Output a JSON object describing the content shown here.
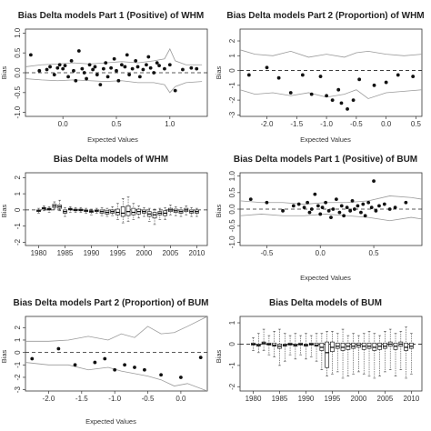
{
  "figure": {
    "panels": [
      {
        "id": "p1",
        "title": "Bias Delta models Part 1 (Positive) of WHM",
        "xlabel": "Expected Values",
        "ylabel": "Bias"
      },
      {
        "id": "p2",
        "title": "Bias Delta models Part 2 (Proportion) of WHM",
        "xlabel": "Expected Values",
        "ylabel": "Bias"
      },
      {
        "id": "p3",
        "title": "Bias Delta models of WHM",
        "xlabel": "",
        "ylabel": "Bias"
      },
      {
        "id": "p4",
        "title": "Bias Delta models Part 1 (Positive) of BUM",
        "xlabel": "Expected Values",
        "ylabel": "Bias"
      },
      {
        "id": "p5",
        "title": "Bias Delta models Part 2 (Proportion) of BUM",
        "xlabel": "Expected Values",
        "ylabel": "Bias"
      },
      {
        "id": "p6",
        "title": "Bias Delta models of BUM",
        "xlabel": "",
        "ylabel": "Bias"
      }
    ]
  },
  "chart_data": [
    {
      "type": "scatter",
      "title": "Bias Delta models Part 1 (Positive) of WHM",
      "xlabel": "Expected Values",
      "ylabel": "Bias",
      "xlim": [
        -0.35,
        1.35
      ],
      "ylim": [
        -1.1,
        1.1
      ],
      "xticks": [
        {
          "v": 0,
          "label": "0.0"
        },
        {
          "v": 0.5,
          "label": "0.5"
        },
        {
          "v": 1,
          "label": "1.0"
        }
      ],
      "yticks": [
        {
          "v": -1,
          "label": "-1.0"
        },
        {
          "v": -0.5,
          "label": "-0.5"
        },
        {
          "v": 0,
          "label": "0.0"
        },
        {
          "v": 0.5,
          "label": "0.5"
        },
        {
          "v": 1,
          "label": "1.0"
        }
      ],
      "refline": 0,
      "x": [
        -0.3,
        -0.22,
        -0.15,
        -0.12,
        -0.08,
        -0.05,
        -0.03,
        0.0,
        0.02,
        0.05,
        0.08,
        0.1,
        0.12,
        0.15,
        0.18,
        0.2,
        0.22,
        0.25,
        0.28,
        0.3,
        0.32,
        0.35,
        0.38,
        0.4,
        0.42,
        0.45,
        0.48,
        0.5,
        0.52,
        0.55,
        0.58,
        0.6,
        0.62,
        0.65,
        0.68,
        0.7,
        0.72,
        0.75,
        0.78,
        0.8,
        0.82,
        0.85,
        0.88,
        0.9,
        0.95,
        1.0,
        1.05,
        1.12,
        1.2,
        1.25
      ],
      "y": [
        0.45,
        0.05,
        0.08,
        0.15,
        -0.05,
        0.12,
        0.2,
        0.1,
        0.18,
        -0.1,
        0.3,
        0.05,
        -0.2,
        0.55,
        0.1,
        0.0,
        -0.15,
        0.2,
        0.08,
        0.15,
        -0.05,
        -0.3,
        0.1,
        0.25,
        -0.1,
        0.12,
        0.35,
        0.05,
        -0.2,
        0.2,
        0.15,
        0.45,
        -0.05,
        0.1,
        0.3,
        0.15,
        -0.1,
        0.08,
        0.2,
        0.4,
        0.12,
        0.0,
        0.25,
        0.18,
        0.1,
        0.2,
        -0.45,
        0.08,
        0.12,
        0.1
      ],
      "envelope": {
        "x": [
          -0.35,
          -0.2,
          -0.05,
          0.1,
          0.25,
          0.4,
          0.55,
          0.7,
          0.85,
          0.95,
          1.0,
          1.05,
          1.15,
          1.3
        ],
        "upper": [
          0.15,
          0.2,
          0.22,
          0.25,
          0.22,
          0.25,
          0.28,
          0.25,
          0.3,
          0.35,
          0.6,
          0.3,
          0.2,
          0.2
        ],
        "lower": [
          -0.15,
          -0.18,
          -0.2,
          -0.18,
          -0.2,
          -0.22,
          -0.2,
          -0.25,
          -0.25,
          -0.3,
          -0.5,
          -0.35,
          -0.25,
          -0.22
        ]
      }
    },
    {
      "type": "scatter",
      "title": "Bias Delta models Part 2 (Proportion) of WHM",
      "xlabel": "Expected Values",
      "ylabel": "Bias",
      "xlim": [
        -2.45,
        0.6
      ],
      "ylim": [
        -3.1,
        2.8
      ],
      "xticks": [
        {
          "v": -2,
          "label": "-2.0"
        },
        {
          "v": -1.5,
          "label": "-1.5"
        },
        {
          "v": -1,
          "label": "-1.0"
        },
        {
          "v": -0.5,
          "label": "-0.5"
        },
        {
          "v": 0,
          "label": "0.0"
        },
        {
          "v": 0.5,
          "label": "0.5"
        }
      ],
      "yticks": [
        {
          "v": -3,
          "label": "-3"
        },
        {
          "v": -2,
          "label": "-2"
        },
        {
          "v": -1,
          "label": "-1"
        },
        {
          "v": 0,
          "label": "0"
        },
        {
          "v": 1,
          "label": "1"
        },
        {
          "v": 2,
          "label": "2"
        }
      ],
      "refline": 0,
      "x": [
        -2.3,
        -2.0,
        -1.8,
        -1.6,
        -1.4,
        -1.25,
        -1.1,
        -1.0,
        -0.9,
        -0.8,
        -0.75,
        -0.65,
        -0.55,
        -0.45,
        -0.2,
        0.0,
        0.2,
        0.45
      ],
      "y": [
        -0.3,
        0.2,
        -0.5,
        -1.5,
        -0.3,
        -1.6,
        -0.4,
        -1.7,
        -2.0,
        -1.3,
        -2.2,
        -2.6,
        -2.0,
        -0.6,
        -1.0,
        -0.8,
        -0.3,
        -0.4
      ],
      "envelope": {
        "x": [
          -2.45,
          -2.2,
          -1.9,
          -1.6,
          -1.3,
          -1.0,
          -0.7,
          -0.5,
          -0.3,
          0.0,
          0.3,
          0.6
        ],
        "upper": [
          1.4,
          1.1,
          1.0,
          1.3,
          0.9,
          1.1,
          0.9,
          1.2,
          1.3,
          1.1,
          1.0,
          1.1
        ],
        "lower": [
          -1.3,
          -1.6,
          -1.5,
          -1.7,
          -1.5,
          -1.8,
          -1.6,
          -1.3,
          -1.9,
          -1.5,
          -1.4,
          -1.3
        ]
      }
    },
    {
      "type": "boxplot",
      "title": "Bias Delta models of WHM",
      "xlabel": "",
      "ylabel": "Bias",
      "xlim": [
        1977.5,
        2012
      ],
      "ylim": [
        -2.2,
        2.3
      ],
      "xticks": [
        {
          "v": 1980,
          "label": "1980"
        },
        {
          "v": 1985,
          "label": "1985"
        },
        {
          "v": 1990,
          "label": "1990"
        },
        {
          "v": 1995,
          "label": "1995"
        },
        {
          "v": 2000,
          "label": "2000"
        },
        {
          "v": 2005,
          "label": "2005"
        },
        {
          "v": 2010,
          "label": "2010"
        }
      ],
      "yticks": [
        {
          "v": -2,
          "label": "-2"
        },
        {
          "v": -1,
          "label": "-1"
        },
        {
          "v": 0,
          "label": "0"
        },
        {
          "v": 1,
          "label": "1"
        },
        {
          "v": 2,
          "label": "2"
        }
      ],
      "refline": 0,
      "years": [
        1980,
        1981,
        1982,
        1983,
        1984,
        1985,
        1986,
        1987,
        1988,
        1989,
        1990,
        1991,
        1992,
        1993,
        1994,
        1995,
        1996,
        1997,
        1998,
        1999,
        2000,
        2001,
        2002,
        2003,
        2004,
        2005,
        2006,
        2007,
        2008,
        2009,
        2010
      ],
      "q1": [
        -0.1,
        0.05,
        0.0,
        0.15,
        0.1,
        -0.2,
        0.0,
        -0.05,
        -0.05,
        -0.1,
        -0.15,
        -0.1,
        -0.2,
        -0.25,
        -0.2,
        -0.3,
        -0.4,
        -0.35,
        -0.3,
        -0.25,
        -0.2,
        -0.4,
        -0.5,
        -0.3,
        -0.35,
        -0.1,
        -0.15,
        -0.2,
        -0.1,
        -0.2,
        -0.2
      ],
      "median": [
        -0.05,
        0.1,
        0.05,
        0.25,
        0.2,
        -0.1,
        0.05,
        0.0,
        0.0,
        -0.05,
        -0.1,
        -0.05,
        -0.1,
        -0.15,
        -0.1,
        -0.15,
        -0.2,
        -0.1,
        -0.15,
        -0.1,
        -0.1,
        -0.25,
        -0.3,
        -0.2,
        -0.2,
        0.0,
        -0.05,
        -0.1,
        0.0,
        -0.1,
        -0.1
      ],
      "q3": [
        0.0,
        0.15,
        0.1,
        0.35,
        0.3,
        0.0,
        0.1,
        0.05,
        0.05,
        0.0,
        -0.05,
        0.0,
        0.0,
        -0.05,
        0.0,
        0.05,
        0.2,
        0.25,
        0.1,
        0.05,
        0.0,
        -0.1,
        -0.15,
        -0.1,
        -0.05,
        0.1,
        0.05,
        0.0,
        0.1,
        0.0,
        0.0
      ],
      "low": [
        -0.2,
        -0.05,
        -0.15,
        0.05,
        -0.05,
        -0.4,
        -0.15,
        -0.15,
        -0.15,
        -0.2,
        -0.3,
        -0.2,
        -0.35,
        -0.4,
        -0.35,
        -0.6,
        -0.8,
        -0.7,
        -0.6,
        -0.5,
        -0.4,
        -0.7,
        -0.9,
        -0.6,
        -0.6,
        -0.3,
        -0.35,
        -0.4,
        -0.3,
        -0.4,
        -0.4
      ],
      "high": [
        0.1,
        0.25,
        0.2,
        0.5,
        0.6,
        0.15,
        0.2,
        0.15,
        0.15,
        0.1,
        0.05,
        0.1,
        0.15,
        0.1,
        0.2,
        0.4,
        0.7,
        0.8,
        0.4,
        0.25,
        0.15,
        0.1,
        0.05,
        0.1,
        0.15,
        0.3,
        0.2,
        0.15,
        0.25,
        0.15,
        0.1
      ]
    },
    {
      "type": "scatter",
      "title": "Bias Delta models Part 1 (Positive) of BUM",
      "xlabel": "Expected Values",
      "ylabel": "Bias",
      "xlim": [
        -0.75,
        0.95
      ],
      "ylim": [
        -1.1,
        1.1
      ],
      "xticks": [
        {
          "v": -0.5,
          "label": "-0.5"
        },
        {
          "v": 0,
          "label": "0.0"
        },
        {
          "v": 0.5,
          "label": "0.5"
        }
      ],
      "yticks": [
        {
          "v": -1,
          "label": "-1.0"
        },
        {
          "v": -0.5,
          "label": "-0.5"
        },
        {
          "v": 0,
          "label": "0.0"
        },
        {
          "v": 0.5,
          "label": "0.5"
        },
        {
          "v": 1,
          "label": "1.0"
        }
      ],
      "refline": 0,
      "x": [
        -0.65,
        -0.5,
        -0.35,
        -0.25,
        -0.2,
        -0.15,
        -0.12,
        -0.1,
        -0.08,
        -0.05,
        -0.02,
        0.0,
        0.02,
        0.05,
        0.08,
        0.1,
        0.12,
        0.15,
        0.18,
        0.2,
        0.22,
        0.25,
        0.28,
        0.3,
        0.32,
        0.35,
        0.38,
        0.4,
        0.42,
        0.45,
        0.48,
        0.5,
        0.52,
        0.55,
        0.6,
        0.65,
        0.7,
        0.8
      ],
      "y": [
        0.3,
        0.2,
        -0.05,
        0.1,
        0.15,
        0.05,
        0.2,
        -0.1,
        0.0,
        0.45,
        0.1,
        -0.15,
        0.05,
        0.2,
        -0.05,
        -0.25,
        0.0,
        0.3,
        -0.1,
        0.1,
        -0.2,
        0.05,
        -0.05,
        0.25,
        0.0,
        0.1,
        -0.1,
        0.15,
        -0.2,
        0.2,
        0.05,
        0.85,
        -0.05,
        0.1,
        0.15,
        0.0,
        0.05,
        0.2
      ],
      "envelope": {
        "x": [
          -0.75,
          -0.55,
          -0.35,
          -0.15,
          0.05,
          0.25,
          0.45,
          0.65,
          0.85,
          0.95
        ],
        "upper": [
          0.25,
          0.2,
          0.2,
          0.15,
          0.2,
          0.2,
          0.25,
          0.4,
          0.35,
          0.3
        ],
        "lower": [
          -0.2,
          -0.15,
          -0.2,
          -0.2,
          -0.15,
          -0.2,
          -0.25,
          -0.35,
          -0.25,
          -0.3
        ]
      }
    },
    {
      "type": "scatter",
      "title": "Bias Delta models Part 2 (Proportion) of BUM",
      "xlabel": "Expected Values",
      "ylabel": "Bias",
      "xlim": [
        -2.35,
        0.4
      ],
      "ylim": [
        -3.1,
        2.9
      ],
      "xticks": [
        {
          "v": -2,
          "label": "-2.0"
        },
        {
          "v": -1.5,
          "label": "-1.5"
        },
        {
          "v": -1,
          "label": "-1.0"
        },
        {
          "v": -0.5,
          "label": "-0.5"
        },
        {
          "v": 0,
          "label": "0.0"
        }
      ],
      "yticks": [
        {
          "v": -3,
          "label": "-3"
        },
        {
          "v": -2,
          "label": "-2"
        },
        {
          "v": -1,
          "label": "-1"
        },
        {
          "v": 0,
          "label": "0"
        },
        {
          "v": 1,
          "label": "1"
        },
        {
          "v": 2,
          "label": "2"
        }
      ],
      "refline": 0,
      "x": [
        -2.25,
        -1.85,
        -1.6,
        -1.3,
        -1.15,
        -1.0,
        -0.85,
        -0.7,
        -0.55,
        -0.3,
        0.0,
        0.3
      ],
      "y": [
        -0.5,
        0.3,
        -1.0,
        -0.8,
        -0.5,
        -1.4,
        -1.0,
        -1.2,
        -1.4,
        -1.8,
        -2.0,
        -0.4
      ],
      "envelope": {
        "x": [
          -2.35,
          -2.0,
          -1.7,
          -1.4,
          -1.1,
          -0.9,
          -0.7,
          -0.5,
          -0.3,
          -0.1,
          0.1,
          0.4
        ],
        "upper": [
          0.9,
          0.9,
          1.0,
          1.3,
          1.0,
          1.5,
          1.2,
          2.1,
          1.5,
          1.6,
          2.1,
          2.9
        ],
        "lower": [
          -0.8,
          -1.0,
          -1.0,
          -1.4,
          -1.2,
          -1.5,
          -1.7,
          -1.9,
          -2.2,
          -2.7,
          -2.5,
          -3.1
        ]
      }
    },
    {
      "type": "boxplot",
      "title": "Bias Delta models of BUM",
      "xlabel": "",
      "ylabel": "Bias",
      "xlim": [
        1977.5,
        2012
      ],
      "ylim": [
        -2.2,
        1.3
      ],
      "xticks": [
        {
          "v": 1980,
          "label": "1980"
        },
        {
          "v": 1985,
          "label": "1985"
        },
        {
          "v": 1990,
          "label": "1990"
        },
        {
          "v": 1995,
          "label": "1995"
        },
        {
          "v": 2000,
          "label": "2000"
        },
        {
          "v": 2005,
          "label": "2005"
        },
        {
          "v": 2010,
          "label": "2010"
        }
      ],
      "yticks": [
        {
          "v": -2,
          "label": "-2"
        },
        {
          "v": -1,
          "label": "-1"
        },
        {
          "v": 0,
          "label": "0"
        },
        {
          "v": 1,
          "label": "1"
        }
      ],
      "refline": 0,
      "years": [
        1980,
        1981,
        1982,
        1983,
        1984,
        1985,
        1986,
        1987,
        1988,
        1989,
        1990,
        1991,
        1992,
        1993,
        1994,
        1995,
        1996,
        1997,
        1998,
        1999,
        2000,
        2001,
        2002,
        2003,
        2004,
        2005,
        2006,
        2007,
        2008,
        2009,
        2010
      ],
      "q1": [
        -0.05,
        -0.1,
        0.0,
        -0.05,
        -0.1,
        -0.2,
        -0.1,
        -0.05,
        -0.1,
        -0.05,
        -0.1,
        -0.05,
        -0.1,
        -0.3,
        -1.1,
        -0.35,
        -0.2,
        -0.3,
        -0.25,
        -0.2,
        -0.15,
        -0.25,
        -0.2,
        -0.3,
        -0.25,
        -0.2,
        -0.1,
        -0.25,
        -0.1,
        -0.3,
        -0.2
      ],
      "median": [
        0.0,
        -0.05,
        0.05,
        0.0,
        -0.05,
        -0.1,
        -0.05,
        0.0,
        -0.05,
        0.0,
        -0.05,
        0.0,
        -0.05,
        -0.15,
        -0.4,
        -0.15,
        -0.1,
        -0.15,
        -0.1,
        -0.1,
        -0.05,
        -0.1,
        -0.1,
        -0.15,
        -0.1,
        -0.1,
        0.0,
        -0.1,
        0.0,
        -0.15,
        -0.1
      ],
      "q3": [
        0.05,
        0.0,
        0.1,
        0.05,
        0.05,
        0.0,
        0.0,
        0.05,
        0.0,
        0.05,
        0.0,
        0.05,
        0.05,
        0.05,
        0.1,
        0.1,
        0.05,
        0.05,
        0.05,
        0.05,
        0.05,
        0.05,
        0.05,
        0.05,
        0.05,
        0.05,
        0.1,
        0.05,
        0.1,
        0.05,
        0.05
      ],
      "low": [
        -0.3,
        -0.4,
        -0.3,
        -0.5,
        -0.6,
        -1.0,
        -0.8,
        -0.5,
        -0.7,
        -0.5,
        -0.7,
        -0.6,
        -0.8,
        -1.2,
        -1.5,
        -1.4,
        -1.3,
        -1.6,
        -1.5,
        -1.4,
        -1.3,
        -1.4,
        -1.5,
        -1.6,
        -1.5,
        -1.3,
        -1.2,
        -1.5,
        -1.2,
        -1.6,
        -1.4
      ],
      "high": [
        0.3,
        0.5,
        0.7,
        0.4,
        0.6,
        0.7,
        0.5,
        0.4,
        0.5,
        0.4,
        0.5,
        0.4,
        0.5,
        0.5,
        0.6,
        0.6,
        0.5,
        0.7,
        0.4,
        0.5,
        0.4,
        0.5,
        0.6,
        0.5,
        0.4,
        0.6,
        0.7,
        0.5,
        0.6,
        0.8,
        0.5
      ]
    }
  ]
}
